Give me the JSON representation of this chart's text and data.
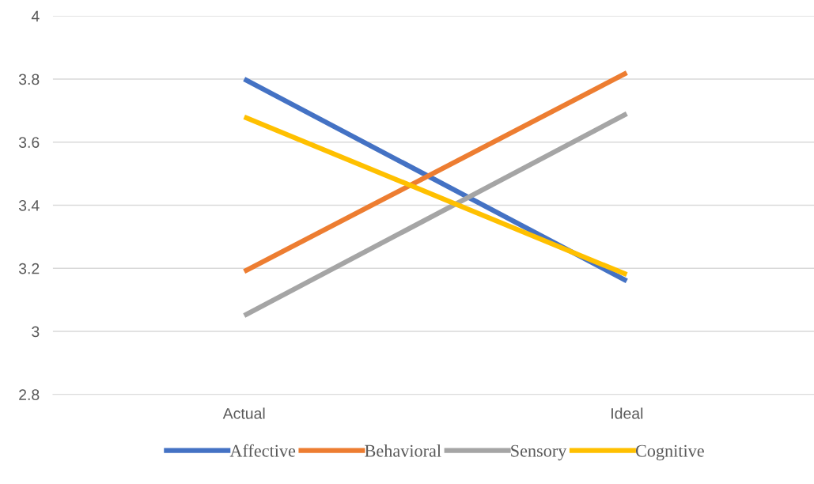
{
  "chart_data": {
    "type": "line",
    "categories": [
      "Actual",
      "Ideal"
    ],
    "series": [
      {
        "name": "Affective",
        "color": "#4472c4",
        "values": [
          3.8,
          3.16
        ]
      },
      {
        "name": "Behavioral",
        "color": "#ed7d31",
        "values": [
          3.19,
          3.82
        ]
      },
      {
        "name": "Sensory",
        "color": "#a5a5a5",
        "values": [
          3.05,
          3.69
        ]
      },
      {
        "name": "Cognitive",
        "color": "#ffc000",
        "values": [
          3.68,
          3.18
        ]
      }
    ],
    "ylim": [
      2.8,
      4
    ],
    "yticks": [
      2.8,
      3,
      3.2,
      3.4,
      3.6,
      3.8,
      4
    ],
    "grid": "y",
    "legend": "bottom",
    "marker": "none",
    "line_style": "solid"
  }
}
